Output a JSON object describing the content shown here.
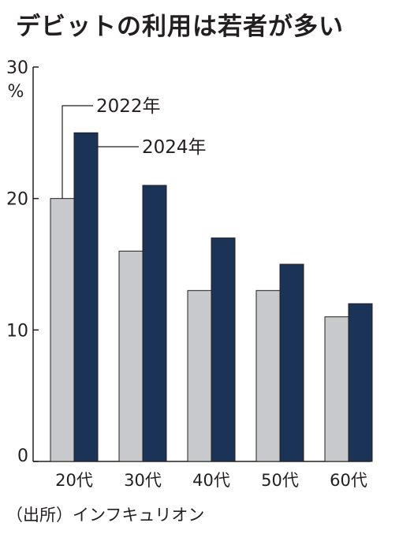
{
  "title": "デビットの利用は若者が多い",
  "source": "（出所）インフキュリオン",
  "colors": {
    "series_2022": "#c7c9cc",
    "series_2024": "#1c3358",
    "axis": "#231f20"
  },
  "chart_data": {
    "type": "bar",
    "categories": [
      "20代",
      "30代",
      "40代",
      "50代",
      "60代"
    ],
    "series": [
      {
        "name": "2022年",
        "values": [
          20,
          16,
          13,
          13,
          11
        ]
      },
      {
        "name": "2024年",
        "values": [
          25,
          21,
          17,
          15,
          12
        ]
      }
    ],
    "ylim": [
      0,
      30
    ],
    "yticks": [
      0,
      10,
      20,
      30
    ],
    "ytick_labels": [
      "0",
      "10",
      "20",
      "30"
    ],
    "ylabel": "%",
    "legend": "callout labels on the 20代 bars"
  }
}
